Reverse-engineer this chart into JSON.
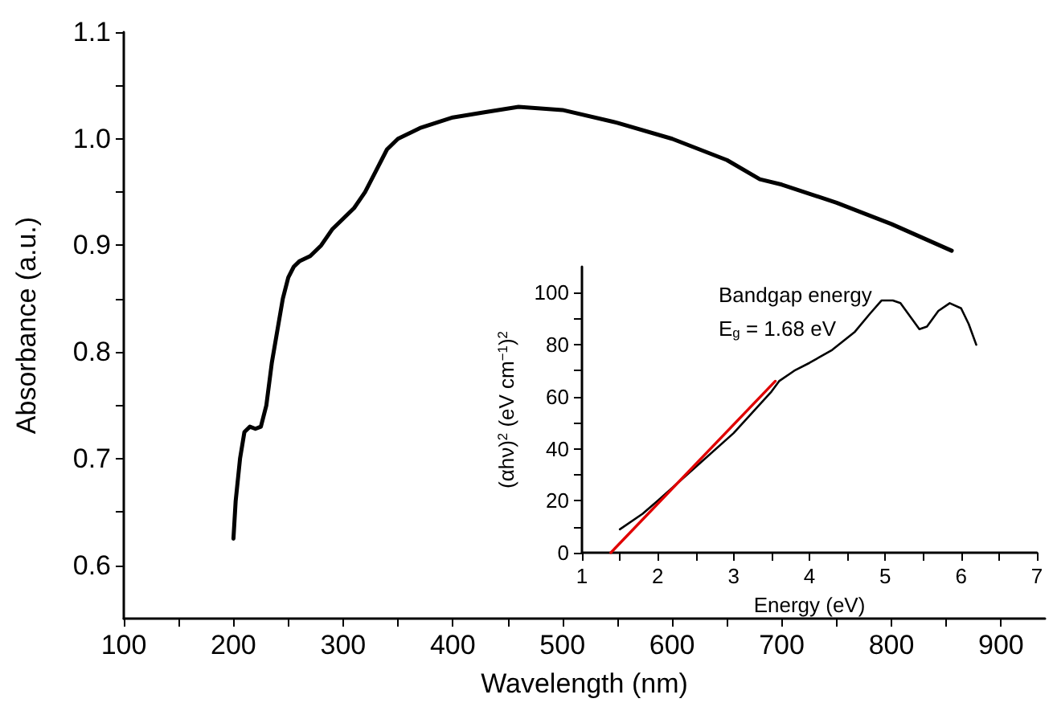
{
  "chart_data": [
    {
      "type": "line",
      "xlabel": "Wavelength (nm)",
      "ylabel": "Absorbance (a.u.)",
      "marker": "none",
      "line_style": "solid",
      "xlim": [
        100,
        940
      ],
      "xticks": [
        100,
        {
          "value": 150,
          "label": null
        },
        200,
        {
          "value": 250,
          "label": null
        },
        300,
        {
          "value": 350,
          "label": null
        },
        400,
        {
          "value": 450,
          "label": null
        },
        500,
        {
          "value": 550,
          "label": null
        },
        600,
        {
          "value": 650,
          "label": null
        },
        700,
        {
          "value": 750,
          "label": null
        },
        800,
        {
          "value": 850,
          "label": null
        },
        900
      ],
      "ylim": [
        0.55,
        1.1
      ],
      "yticks": [
        0.6,
        {
          "value": 0.65,
          "label": null
        },
        0.7,
        {
          "value": 0.75,
          "label": null
        },
        0.8,
        {
          "value": 0.85,
          "label": null
        },
        0.9,
        {
          "value": 0.95,
          "label": null
        },
        {
          "value": 1,
          "label": "1.0"
        },
        {
          "value": 1.05,
          "label": null
        },
        1.1
      ],
      "series": [
        {
          "color": "#000000",
          "x": [
            200,
            202,
            206,
            210,
            215,
            220,
            225,
            230,
            235,
            240,
            245,
            250,
            255,
            260,
            270,
            280,
            290,
            300,
            310,
            320,
            330,
            340,
            350,
            370,
            400,
            430,
            460,
            500,
            550,
            600,
            650,
            680,
            700,
            750,
            800,
            855
          ],
          "values": [
            0.625,
            0.66,
            0.7,
            0.725,
            0.73,
            0.728,
            0.73,
            0.75,
            0.79,
            0.82,
            0.85,
            0.87,
            0.88,
            0.885,
            0.89,
            0.9,
            0.915,
            0.925,
            0.935,
            0.95,
            0.97,
            0.99,
            1.0,
            1.01,
            1.02,
            1.025,
            1.03,
            1.027,
            1.015,
            1.0,
            0.98,
            0.962,
            0.957,
            0.94,
            0.92,
            0.895
          ]
        }
      ]
    },
    {
      "type": "line",
      "xlabel": "Energy (eV)",
      "ylabel": "(αhν)$^{2}$ (eV cm$^{−1}$)$^{2}$",
      "marker": "none",
      "line_style": "solid",
      "annotations": [
        "Bandgap energy",
        "E$_{g}$ = 1.68 eV"
      ],
      "xlim": [
        1,
        7
      ],
      "xticks": [
        1,
        {
          "value": 1.5,
          "label": null
        },
        2,
        {
          "value": 2.5,
          "label": null
        },
        3,
        {
          "value": 3.5,
          "label": null
        },
        4,
        {
          "value": 4.5,
          "label": null
        },
        5,
        {
          "value": 5.5,
          "label": null
        },
        6,
        {
          "value": 6.5,
          "label": null
        },
        7
      ],
      "ylim": [
        0,
        110
      ],
      "yticks": [
        0,
        {
          "value": 10,
          "label": null
        },
        20,
        {
          "value": 30,
          "label": null
        },
        40,
        {
          "value": 50,
          "label": null
        },
        60,
        {
          "value": 70,
          "label": null
        },
        80,
        {
          "value": 90,
          "label": null
        },
        100
      ],
      "series": [
        {
          "color": "#000000",
          "x": [
            1.5,
            1.8,
            2.0,
            2.5,
            3.0,
            3.5,
            3.6,
            3.8,
            4.0,
            4.3,
            4.6,
            4.8,
            4.95,
            5.1,
            5.2,
            5.35,
            5.45,
            5.55,
            5.7,
            5.85,
            6.0,
            6.1,
            6.2
          ],
          "values": [
            9,
            15,
            20,
            33,
            46,
            62,
            66,
            70,
            73,
            78,
            85,
            92,
            97,
            97,
            96,
            90,
            86,
            87,
            93,
            96,
            94,
            88,
            80
          ]
        },
        {
          "color": "#e00000",
          "x": [
            1.38,
            3.55
          ],
          "values": [
            0,
            66
          ]
        }
      ]
    }
  ]
}
